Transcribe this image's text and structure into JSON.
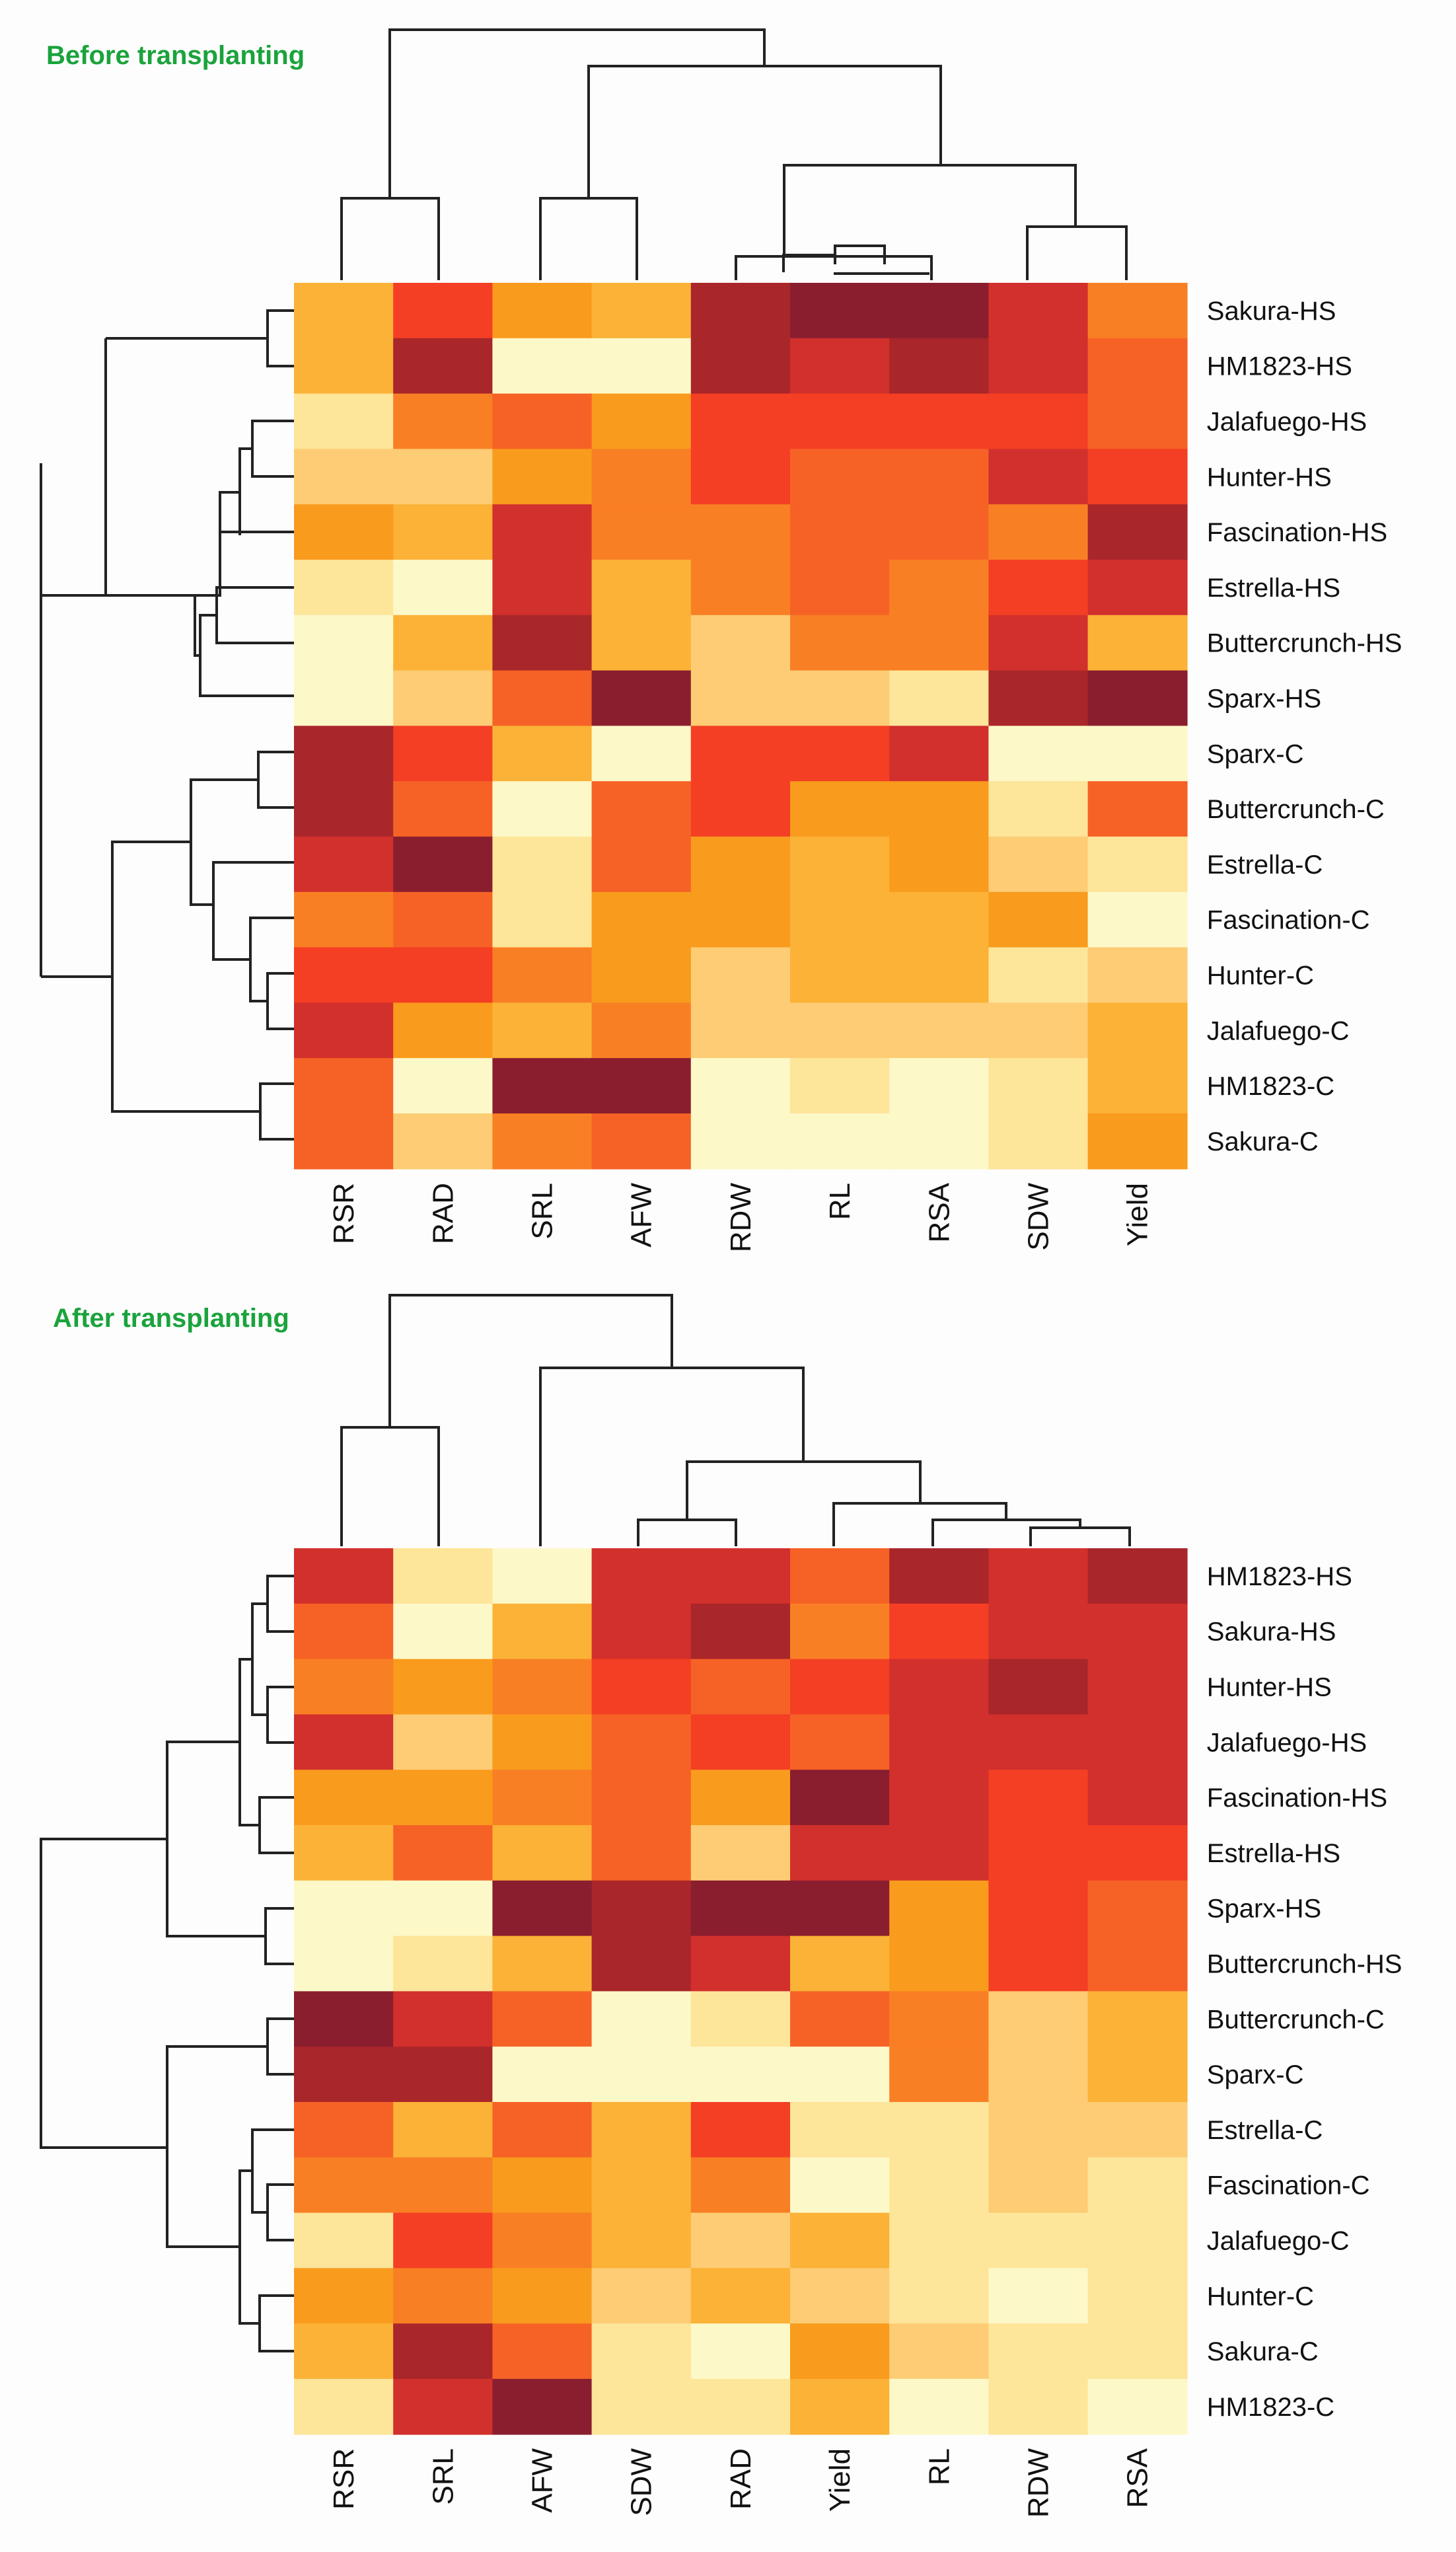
{
  "palette": {
    "1": "#fdf8c8",
    "2": "#fde59a",
    "3": "#fdcc74",
    "4": "#fbb237",
    "5": "#f99b1d",
    "6": "#f97f24",
    "7": "#f66226",
    "8": "#f43f24",
    "9": "#d2302c",
    "10": "#a9262a",
    "11": "#8a1e2f"
  },
  "colors": {
    "title": "#1aa33c",
    "dendrogram": "#222222",
    "text": "#111111"
  },
  "chart_data": [
    {
      "type": "heatmap",
      "title": "Before transplanting",
      "color_scale": "low = pale yellow, high = dark red",
      "columns": [
        "RSR",
        "RAD",
        "SRL",
        "AFW",
        "RDW",
        "RL",
        "RSA",
        "SDW",
        "Yield"
      ],
      "rows": [
        "Sakura-HS",
        "HM1823-HS",
        "Jalafuego-HS",
        "Hunter-HS",
        "Fascination-HS",
        "Estrella-HS",
        "Buttercrunch-HS",
        "Sparx-HS",
        "Sparx-C",
        "Buttercrunch-C",
        "Estrella-C",
        "Fascination-C",
        "Hunter-C",
        "Jalafuego-C",
        "HM1823-C",
        "Sakura-C"
      ],
      "values": [
        [
          4,
          8,
          5,
          4,
          10,
          11,
          11,
          9,
          6
        ],
        [
          4,
          10,
          1,
          1,
          10,
          9,
          10,
          9,
          7
        ],
        [
          2,
          6,
          7,
          5,
          8,
          8,
          8,
          8,
          7
        ],
        [
          3,
          3,
          5,
          6,
          8,
          7,
          7,
          9,
          8
        ],
        [
          5,
          4,
          9,
          6,
          6,
          7,
          7,
          6,
          10
        ],
        [
          2,
          1,
          9,
          4,
          6,
          7,
          6,
          8,
          9
        ],
        [
          1,
          4,
          10,
          4,
          3,
          6,
          6,
          9,
          4
        ],
        [
          1,
          3,
          7,
          11,
          3,
          3,
          2,
          10,
          11
        ],
        [
          10,
          8,
          4,
          1,
          8,
          8,
          9,
          1,
          1
        ],
        [
          10,
          7,
          1,
          7,
          8,
          5,
          5,
          2,
          7
        ],
        [
          9,
          11,
          2,
          7,
          5,
          4,
          5,
          3,
          2
        ],
        [
          6,
          7,
          2,
          5,
          5,
          4,
          4,
          5,
          1
        ],
        [
          8,
          8,
          6,
          5,
          3,
          4,
          4,
          2,
          3
        ],
        [
          9,
          5,
          4,
          6,
          3,
          3,
          3,
          3,
          4
        ],
        [
          7,
          1,
          11,
          11,
          1,
          2,
          1,
          2,
          4
        ],
        [
          7,
          3,
          6,
          7,
          1,
          1,
          1,
          2,
          5
        ]
      ]
    },
    {
      "type": "heatmap",
      "title": "After transplanting",
      "color_scale": "low = pale yellow, high = dark red",
      "columns": [
        "RSR",
        "SRL",
        "AFW",
        "SDW",
        "RAD",
        "Yield",
        "RL",
        "RDW",
        "RSA"
      ],
      "rows": [
        "HM1823-HS",
        "Sakura-HS",
        "Hunter-HS",
        "Jalafuego-HS",
        "Fascination-HS",
        "Estrella-HS",
        "Sparx-HS",
        "Buttercrunch-HS",
        "Buttercrunch-C",
        "Sparx-C",
        "Estrella-C",
        "Fascination-C",
        "Jalafuego-C",
        "Hunter-C",
        "Sakura-C",
        "HM1823-C"
      ],
      "values": [
        [
          9,
          2,
          1,
          9,
          9,
          7,
          10,
          9,
          10
        ],
        [
          7,
          1,
          4,
          9,
          10,
          6,
          8,
          9,
          9
        ],
        [
          6,
          5,
          6,
          8,
          7,
          8,
          9,
          10,
          9
        ],
        [
          9,
          3,
          5,
          7,
          8,
          7,
          9,
          9,
          9
        ],
        [
          5,
          5,
          6,
          7,
          5,
          11,
          9,
          8,
          9
        ],
        [
          4,
          7,
          4,
          7,
          3,
          9,
          9,
          8,
          8
        ],
        [
          1,
          1,
          11,
          10,
          11,
          11,
          5,
          8,
          7
        ],
        [
          1,
          2,
          4,
          10,
          9,
          4,
          5,
          8,
          7
        ],
        [
          11,
          9,
          7,
          1,
          2,
          7,
          6,
          3,
          4
        ],
        [
          10,
          10,
          1,
          1,
          1,
          1,
          6,
          3,
          4
        ],
        [
          7,
          4,
          7,
          4,
          8,
          2,
          2,
          3,
          3
        ],
        [
          6,
          6,
          5,
          4,
          6,
          1,
          2,
          3,
          2
        ],
        [
          2,
          8,
          6,
          4,
          3,
          4,
          2,
          2,
          2
        ],
        [
          5,
          6,
          5,
          3,
          4,
          3,
          2,
          1,
          2
        ],
        [
          4,
          10,
          7,
          2,
          1,
          5,
          3,
          2,
          2
        ],
        [
          2,
          9,
          11,
          2,
          2,
          4,
          1,
          2,
          1
        ]
      ]
    }
  ]
}
